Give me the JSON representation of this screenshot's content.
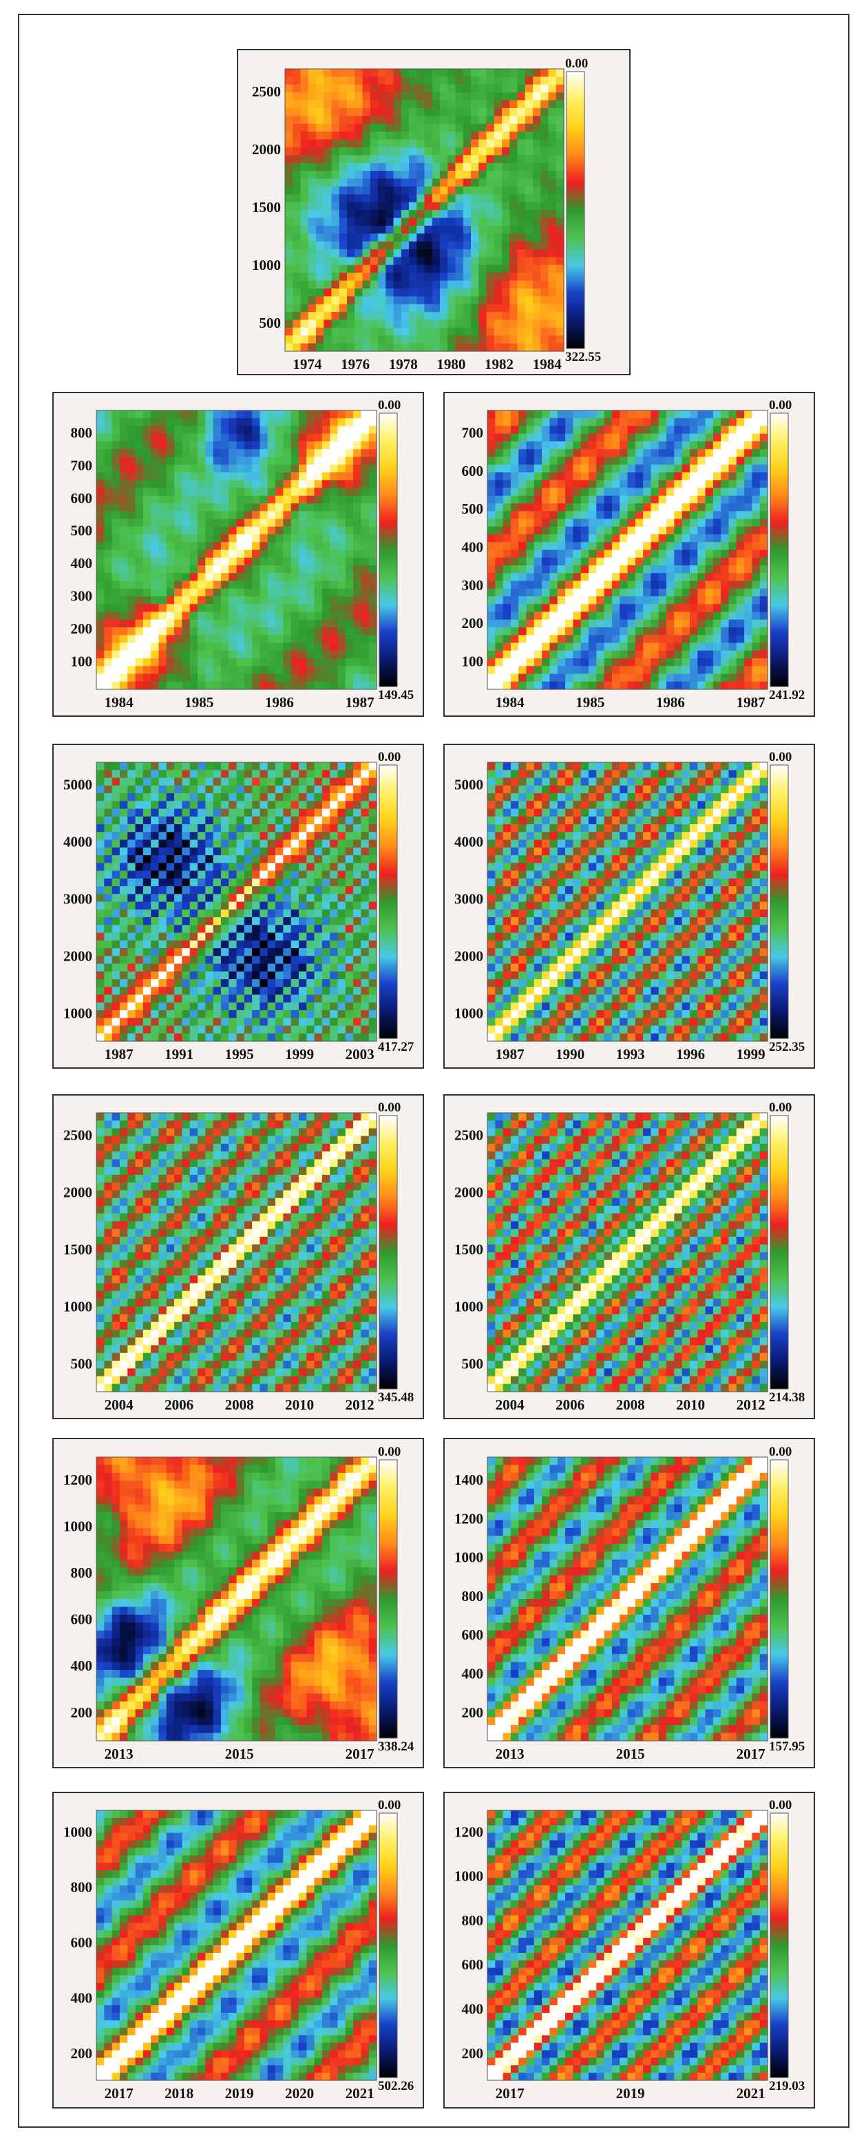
{
  "chart_data": [
    {
      "type": "heatmap",
      "x_ticks": [
        "1974",
        "1976",
        "1978",
        "1980",
        "1982",
        "1984"
      ],
      "y_ticks": [
        "500",
        "1000",
        "1500",
        "2000",
        "2500"
      ],
      "colorbar": {
        "top": "0.00",
        "bottom": "322.55"
      }
    },
    {
      "type": "heatmap",
      "x_ticks": [
        "1984",
        "1985",
        "1986",
        "1987"
      ],
      "y_ticks": [
        "100",
        "200",
        "300",
        "400",
        "500",
        "600",
        "700",
        "800"
      ],
      "colorbar": {
        "top": "0.00",
        "bottom": "149.45"
      }
    },
    {
      "type": "heatmap",
      "x_ticks": [
        "1984",
        "1985",
        "1986",
        "1987"
      ],
      "y_ticks": [
        "100",
        "200",
        "300",
        "400",
        "500",
        "600",
        "700"
      ],
      "colorbar": {
        "top": "0.00",
        "bottom": "241.92"
      }
    },
    {
      "type": "heatmap",
      "x_ticks": [
        "1987",
        "1991",
        "1995",
        "1999",
        "2003"
      ],
      "y_ticks": [
        "1000",
        "2000",
        "3000",
        "4000",
        "5000"
      ],
      "colorbar": {
        "top": "0.00",
        "bottom": "417.27"
      }
    },
    {
      "type": "heatmap",
      "x_ticks": [
        "1987",
        "1990",
        "1993",
        "1996",
        "1999"
      ],
      "y_ticks": [
        "1000",
        "2000",
        "3000",
        "4000",
        "5000"
      ],
      "colorbar": {
        "top": "0.00",
        "bottom": "252.35"
      }
    },
    {
      "type": "heatmap",
      "x_ticks": [
        "2004",
        "2006",
        "2008",
        "2010",
        "2012"
      ],
      "y_ticks": [
        "500",
        "1000",
        "1500",
        "2000",
        "2500"
      ],
      "colorbar": {
        "top": "0.00",
        "bottom": "345.48"
      }
    },
    {
      "type": "heatmap",
      "x_ticks": [
        "2004",
        "2006",
        "2008",
        "2010",
        "2012"
      ],
      "y_ticks": [
        "500",
        "1000",
        "1500",
        "2000",
        "2500"
      ],
      "colorbar": {
        "top": "0.00",
        "bottom": "214.38"
      }
    },
    {
      "type": "heatmap",
      "x_ticks": [
        "2013",
        "2015",
        "2017"
      ],
      "y_ticks": [
        "200",
        "400",
        "600",
        "800",
        "1000",
        "1200"
      ],
      "colorbar": {
        "top": "0.00",
        "bottom": "338.24"
      }
    },
    {
      "type": "heatmap",
      "x_ticks": [
        "2013",
        "2015",
        "2017"
      ],
      "y_ticks": [
        "200",
        "400",
        "600",
        "800",
        "1000",
        "1200",
        "1400"
      ],
      "colorbar": {
        "top": "0.00",
        "bottom": "157.95"
      }
    },
    {
      "type": "heatmap",
      "x_ticks": [
        "2017",
        "2018",
        "2019",
        "2020",
        "2021"
      ],
      "y_ticks": [
        "200",
        "400",
        "600",
        "800",
        "1000"
      ],
      "colorbar": {
        "top": "0.00",
        "bottom": "502.26"
      }
    },
    {
      "type": "heatmap",
      "x_ticks": [
        "2017",
        "2019",
        "2021"
      ],
      "y_ticks": [
        "200",
        "400",
        "600",
        "800",
        "1000",
        "1200"
      ],
      "colorbar": {
        "top": "0.00",
        "bottom": "219.03"
      }
    }
  ],
  "colors": {
    "colorbar": [
      "#ffffff",
      "#fff066",
      "#ffd21a",
      "#ff8a1a",
      "#ee2020",
      "#2e9a2e",
      "#4ec24e",
      "#49c9e8",
      "#1840c8",
      "#0a1a70",
      "#000000"
    ]
  }
}
